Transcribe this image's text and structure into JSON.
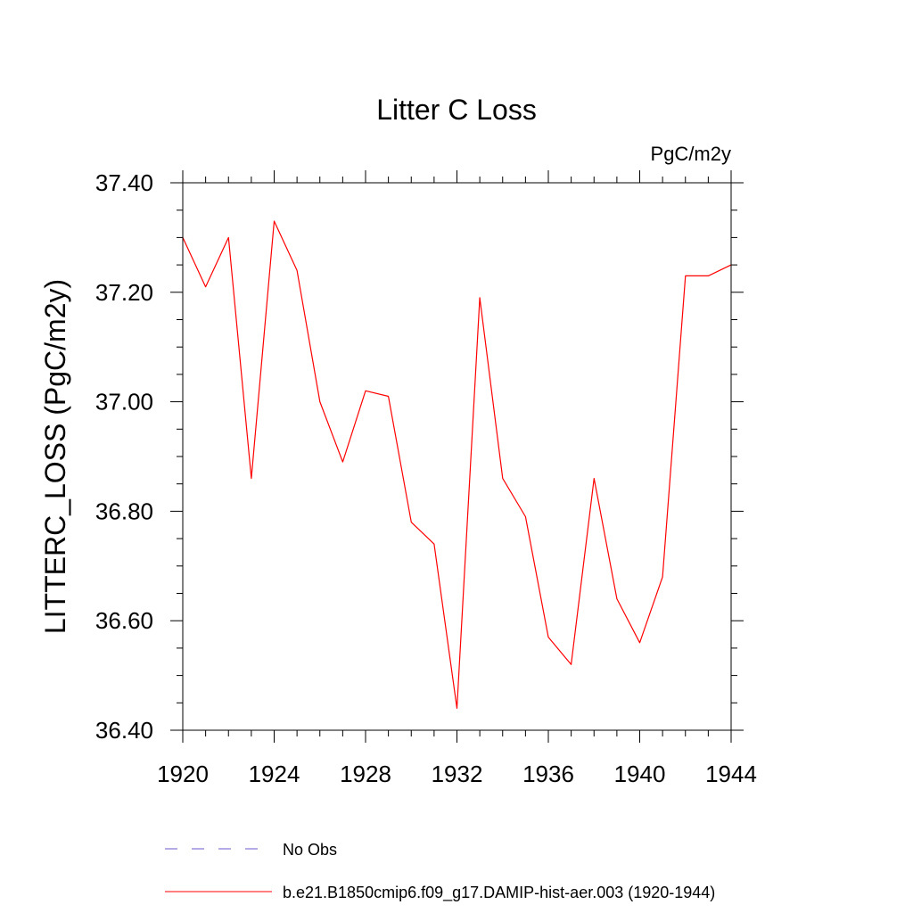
{
  "chart_data": {
    "type": "line",
    "title": "Litter C Loss",
    "units": "PgC/m2y",
    "ylabel": "LITTERC_LOSS  (PgC/m2y)",
    "xlabel": "",
    "xlim": [
      1920,
      1944
    ],
    "ylim": [
      36.4,
      37.4
    ],
    "x_ticks": [
      1920,
      1924,
      1928,
      1932,
      1936,
      1940,
      1944
    ],
    "x_tick_labels": [
      "1920",
      "1924",
      "1928",
      "1932",
      "1936",
      "1940",
      "1944"
    ],
    "y_ticks": [
      36.4,
      36.6,
      36.8,
      37.0,
      37.2,
      37.4
    ],
    "y_tick_labels": [
      "36.40",
      "36.60",
      "36.80",
      "37.00",
      "37.20",
      "37.40"
    ],
    "grid": false,
    "legend_position": "bottom",
    "series": [
      {
        "name": "b.e21.B1850cmip6.f09_g17.DAMIP-hist-aer.003 (1920-1944)",
        "color": "#ff0000",
        "dash": "solid",
        "x": [
          1920,
          1921,
          1922,
          1923,
          1924,
          1925,
          1926,
          1927,
          1928,
          1929,
          1930,
          1931,
          1932,
          1933,
          1934,
          1935,
          1936,
          1937,
          1938,
          1939,
          1940,
          1941,
          1942,
          1943,
          1944
        ],
        "y": [
          37.3,
          37.21,
          37.3,
          36.86,
          37.33,
          37.24,
          37.0,
          36.89,
          37.02,
          37.01,
          36.78,
          36.74,
          36.44,
          37.19,
          36.86,
          36.79,
          36.57,
          36.52,
          36.86,
          36.64,
          36.56,
          36.68,
          37.23,
          37.23,
          37.25
        ]
      }
    ],
    "legend": [
      {
        "label": "No Obs",
        "color": "#6a5acd",
        "dash": "dashed"
      },
      {
        "label": "b.e21.B1850cmip6.f09_g17.DAMIP-hist-aer.003 (1920-1944)",
        "color": "#ff0000",
        "dash": "solid"
      }
    ]
  }
}
